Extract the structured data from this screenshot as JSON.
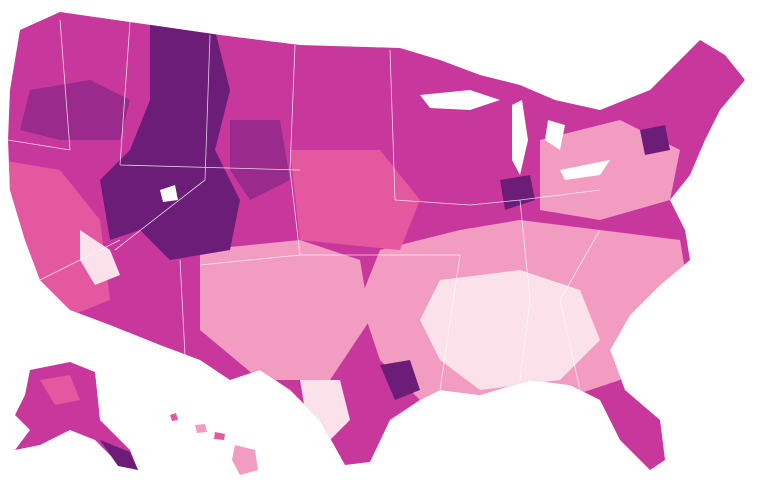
{
  "map": {
    "colors": [
      "#c8379c",
      "#6b1d78",
      "#e4589f",
      "#f29cc1",
      "#fbe1e9",
      "#9a2a8c"
    ]
  }
}
